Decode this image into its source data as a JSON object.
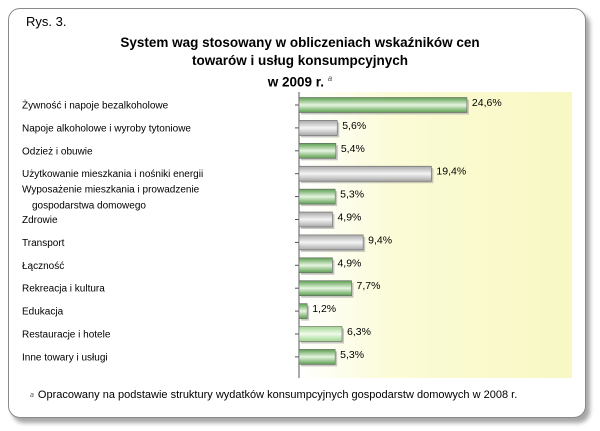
{
  "figure_label": "Rys. 3.",
  "title_lines": [
    "System wag stosowany w obliczeniach wskaźników cen",
    "towarów i usług konsumpcyjnych",
    "w 2009 r."
  ],
  "title_footnote_mark": "a",
  "footnote": {
    "mark": "a",
    "text": "Opracowany na podstawie struktury wydatków konsumpcyjnych gospodarstw domowych w 2008 r."
  },
  "colors": {
    "bar_green": "#5a9e4e",
    "bar_gray": "#a8a8a8",
    "bar_light_green": "#9fd68f",
    "plot_background": "#fbfbd6"
  },
  "chart_data": {
    "type": "bar",
    "orientation": "horizontal",
    "categories": [
      "Żywność i napoje bezalkoholowe",
      "Napoje alkoholowe i wyroby tytoniowe",
      "Odzież i obuwie",
      "Użytkowanie mieszkania i nośniki energii",
      "Wyposażenie mieszkania i prowadzenie gospodarstwa domowego",
      "Zdrowie",
      "Transport",
      "Łączność",
      "Rekreacja i kultura",
      "Edukacja",
      "Restauracje i hotele",
      "Inne towary i usługi"
    ],
    "category_label_lines": [
      [
        "Żywność i napoje bezalkoholowe"
      ],
      [
        "Napoje alkoholowe i wyroby tytoniowe"
      ],
      [
        "Odzież i obuwie"
      ],
      [
        "Użytkowanie mieszkania i nośniki energii"
      ],
      [
        "Wyposażenie mieszkania i prowadzenie",
        "gospodarstwa domowego"
      ],
      [
        "Zdrowie"
      ],
      [
        "Transport"
      ],
      [
        "Łączność"
      ],
      [
        "Rekreacja i kultura"
      ],
      [
        "Edukacja"
      ],
      [
        "Restauracje i hotele"
      ],
      [
        "Inne towary i usługi"
      ]
    ],
    "values": [
      24.6,
      5.6,
      5.4,
      19.4,
      5.3,
      4.9,
      9.4,
      4.9,
      7.7,
      1.2,
      6.3,
      5.3
    ],
    "value_labels": [
      "24,6%",
      "5,6%",
      "5,4%",
      "19,4%",
      "5,3%",
      "4,9%",
      "9,4%",
      "4,9%",
      "7,7%",
      "1,2%",
      "6,3%",
      "5,3%"
    ],
    "bar_colors": [
      "green",
      "gray",
      "green",
      "gray",
      "green",
      "gray",
      "gray",
      "green",
      "green",
      "green",
      "light_green",
      "green"
    ],
    "unit": "%",
    "xlim": [
      0,
      40
    ],
    "grid": false,
    "legend": "none"
  }
}
